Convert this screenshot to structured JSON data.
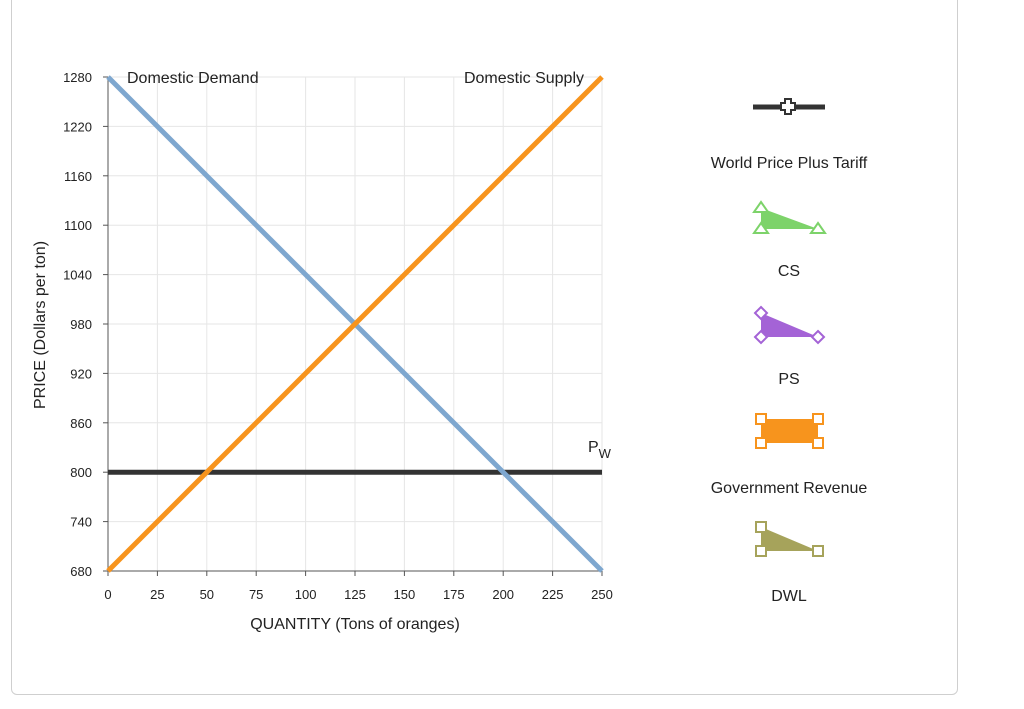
{
  "chart_data": {
    "type": "line",
    "xlabel": "QUANTITY (Tons of oranges)",
    "ylabel": "PRICE (Dollars per ton)",
    "xlim": [
      0,
      250
    ],
    "ylim": [
      680,
      1280
    ],
    "x_ticks": [
      0,
      25,
      50,
      75,
      100,
      125,
      150,
      175,
      200,
      225,
      250
    ],
    "y_ticks": [
      680,
      740,
      800,
      860,
      920,
      980,
      1040,
      1100,
      1160,
      1220,
      1280
    ],
    "grid": true,
    "series": [
      {
        "name": "Domestic Demand",
        "color": "#7ea7cf",
        "points": [
          [
            0,
            1280
          ],
          [
            250,
            680
          ]
        ]
      },
      {
        "name": "Domestic Supply",
        "color": "#f7941d",
        "points": [
          [
            0,
            680
          ],
          [
            250,
            1280
          ]
        ]
      },
      {
        "name": "P",
        "subscript": "W",
        "color": "#333333",
        "points": [
          [
            0,
            800
          ],
          [
            250,
            800
          ]
        ]
      }
    ]
  },
  "legend_tools": [
    {
      "label": "World Price Plus Tariff",
      "icon": "cross-line-icon",
      "color": "#333333"
    },
    {
      "label": "CS",
      "icon": "triangle-icon",
      "color": "#7dd36a"
    },
    {
      "label": "PS",
      "icon": "diamond-triangle-icon",
      "color": "#a463d6"
    },
    {
      "label": "Government Revenue",
      "icon": "rectangle-icon",
      "color": "#f7941d"
    },
    {
      "label": "DWL",
      "icon": "square-triangle-icon",
      "color": "#a6a35b"
    }
  ]
}
